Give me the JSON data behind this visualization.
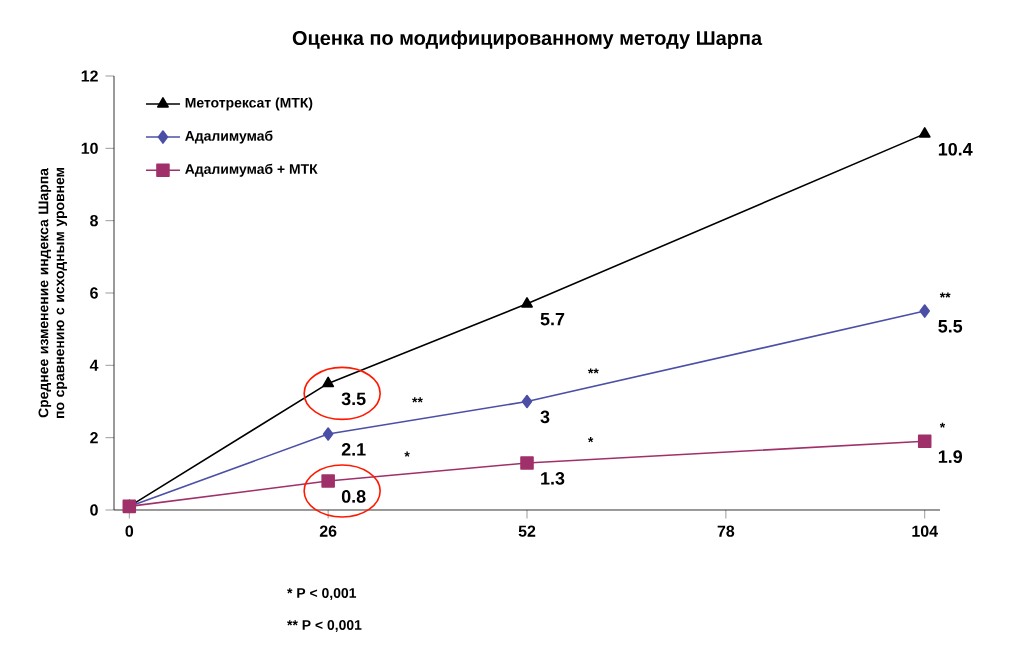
{
  "chart_data": {
    "type": "line",
    "title": "Оценка по модифицированному методу Шарпа",
    "ylabel": "Среднее изменение индекса Шарпа по сравнению с исходным уровнем",
    "x": [
      0,
      26,
      52,
      104
    ],
    "xlim": [
      -2,
      106
    ],
    "xticks": [
      0,
      26,
      52,
      78,
      104
    ],
    "ylim": [
      0,
      12
    ],
    "yticks": [
      0,
      2,
      4,
      6,
      8,
      10,
      12
    ],
    "legend": "top left",
    "series": [
      {
        "name": "Метотрексат (МТК)",
        "color": "#000000",
        "marker": "triangle",
        "values": [
          0.1,
          3.5,
          5.7,
          10.4
        ],
        "value_labels": [
          null,
          "3.5",
          "5.7",
          "10.4"
        ]
      },
      {
        "name": "Адалимумаб",
        "color": "#4b4fa6",
        "marker": "diamond",
        "values": [
          0.1,
          2.1,
          3,
          5.5
        ],
        "value_labels": [
          null,
          "2.1",
          "3",
          "5.5"
        ]
      },
      {
        "name": "Адалимумаб + МТК",
        "color": "#a0306a",
        "marker": "square",
        "values": [
          0.1,
          0.8,
          1.3,
          1.9
        ],
        "value_labels": [
          null,
          "0.8",
          "1.3",
          "1.9"
        ]
      }
    ],
    "annotations": [
      {
        "text": "**",
        "x": 35,
        "y": 2.6
      },
      {
        "text": "*",
        "x": 34,
        "y": 1.1
      },
      {
        "text": "**",
        "x": 58,
        "y": 3.4
      },
      {
        "text": "*",
        "x": 58,
        "y": 1.5
      },
      {
        "text": "**",
        "x": 104,
        "y": 5.5
      },
      {
        "text": "*",
        "x": 104,
        "y": 1.9
      },
      "* P < 0,001",
      "** P < 0,001"
    ]
  }
}
